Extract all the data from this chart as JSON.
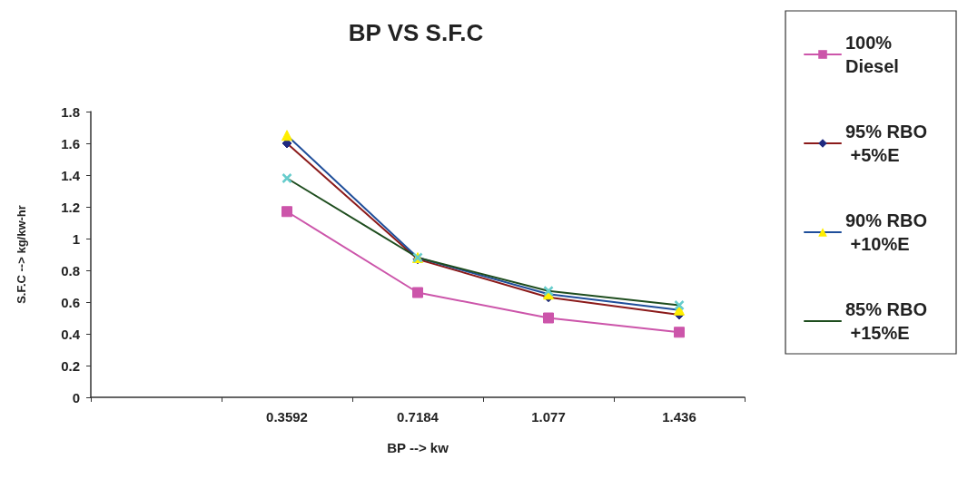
{
  "chart_data": {
    "type": "line",
    "title": "BP VS S.F.C",
    "xlabel": "BP --> kw",
    "ylabel": "S.F.C --> kg/kw-hr",
    "categories": [
      null,
      "0.3592",
      "0.7184",
      "1.077",
      "1.436"
    ],
    "series": [
      {
        "name": "100% Diesel",
        "color": "#cc55aa",
        "marker": "square",
        "colors": [
          null,
          "#cc55aa",
          "#cc55aa",
          "#cc55aa",
          "#cc55aa"
        ],
        "values": [
          null,
          1.17,
          0.66,
          0.5,
          0.41
        ]
      },
      {
        "name": "95% RBO +5%E",
        "color": "#8b1a1a",
        "marker": "diamond",
        "colors": [
          null,
          "#1f2a80",
          "#1f2a80",
          "#1f2a80",
          "#1f2a80"
        ],
        "values": [
          null,
          1.6,
          0.87,
          0.63,
          0.52
        ]
      },
      {
        "name": "90% RBO +10%E",
        "color": "#1f4e9a",
        "marker": "triangle",
        "colors": [
          null,
          "#ffee00",
          "#ffee00",
          "#ffee00",
          "#ffee00"
        ],
        "values": [
          null,
          1.65,
          0.88,
          0.65,
          0.55
        ]
      },
      {
        "name": "85% RBO +15%E",
        "color": "#1e4d1e",
        "marker": "cross",
        "colors": [
          null,
          "#66cccc",
          "#66cccc",
          "#66cccc",
          "#66cccc"
        ],
        "values": [
          null,
          1.38,
          0.88,
          0.67,
          0.58
        ]
      }
    ],
    "ylim": [
      0,
      1.8
    ],
    "yticks": [
      0,
      0.2,
      0.4,
      0.6,
      0.8,
      1,
      1.2,
      1.4,
      1.6,
      1.8
    ],
    "grid": false,
    "legend": "right"
  }
}
